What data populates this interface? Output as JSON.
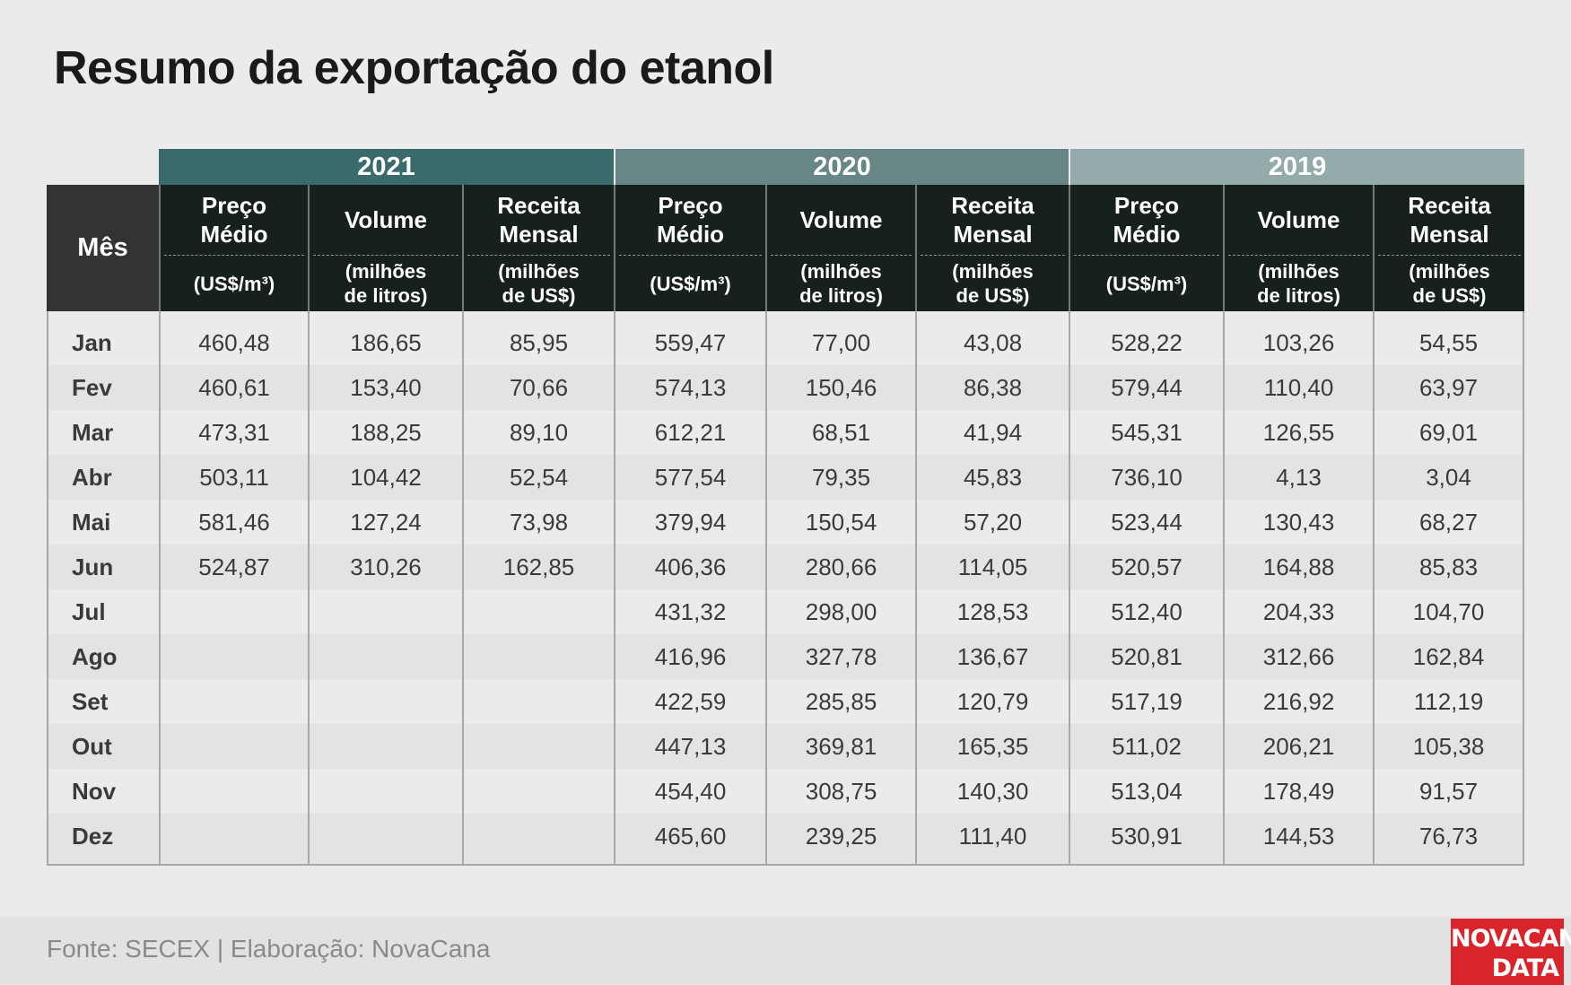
{
  "title": "Resumo da exportação do etanol",
  "footer": {
    "source": "Fonte: SECEX | Elaboração: NovaCana",
    "logo_line1": "NOVACANA",
    "logo_line2": "DATA"
  },
  "colors": {
    "year_2021": "#3a6a6c",
    "year_2020": "#688686",
    "year_2019": "#93abab",
    "header_dark": "#16211f",
    "logo_red": "#d9242b"
  },
  "chart_data": {
    "type": "table",
    "title": "Resumo da exportação do etanol",
    "row_header": "Mês",
    "years": [
      "2021",
      "2020",
      "2019"
    ],
    "columns": [
      {
        "label": "Preço\nMédio",
        "unit": "(US$/m³)"
      },
      {
        "label": "Volume",
        "unit": "(milhões\nde litros)"
      },
      {
        "label": "Receita\nMensal",
        "unit": "(milhões\nde US$)"
      }
    ],
    "months": [
      "Jan",
      "Fev",
      "Mar",
      "Abr",
      "Mai",
      "Jun",
      "Jul",
      "Ago",
      "Set",
      "Out",
      "Nov",
      "Dez"
    ],
    "rows": [
      [
        "460,48",
        "186,65",
        "85,95",
        "559,47",
        "77,00",
        "43,08",
        "528,22",
        "103,26",
        "54,55"
      ],
      [
        "460,61",
        "153,40",
        "70,66",
        "574,13",
        "150,46",
        "86,38",
        "579,44",
        "110,40",
        "63,97"
      ],
      [
        "473,31",
        "188,25",
        "89,10",
        "612,21",
        "68,51",
        "41,94",
        "545,31",
        "126,55",
        "69,01"
      ],
      [
        "503,11",
        "104,42",
        "52,54",
        "577,54",
        "79,35",
        "45,83",
        "736,10",
        "4,13",
        "3,04"
      ],
      [
        "581,46",
        "127,24",
        "73,98",
        "379,94",
        "150,54",
        "57,20",
        "523,44",
        "130,43",
        "68,27"
      ],
      [
        "524,87",
        "310,26",
        "162,85",
        "406,36",
        "280,66",
        "114,05",
        "520,57",
        "164,88",
        "85,83"
      ],
      [
        "",
        "",
        "",
        "431,32",
        "298,00",
        "128,53",
        "512,40",
        "204,33",
        "104,70"
      ],
      [
        "",
        "",
        "",
        "416,96",
        "327,78",
        "136,67",
        "520,81",
        "312,66",
        "162,84"
      ],
      [
        "",
        "",
        "",
        "422,59",
        "285,85",
        "120,79",
        "517,19",
        "216,92",
        "112,19"
      ],
      [
        "",
        "",
        "",
        "447,13",
        "369,81",
        "165,35",
        "511,02",
        "206,21",
        "105,38"
      ],
      [
        "",
        "",
        "",
        "454,40",
        "308,75",
        "140,30",
        "513,04",
        "178,49",
        "91,57"
      ],
      [
        "",
        "",
        "",
        "465,60",
        "239,25",
        "111,40",
        "530,91",
        "144,53",
        "76,73"
      ]
    ]
  }
}
